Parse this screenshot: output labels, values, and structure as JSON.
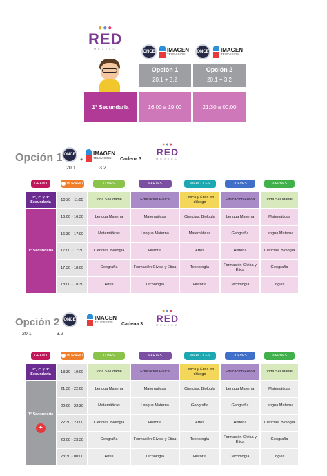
{
  "header": {
    "red_logo": {
      "word": "RED",
      "sub": "MÉXICO"
    },
    "once_logo": "ONCE",
    "imagen_logo": {
      "line1": "IMAGEN",
      "line2": "TELEVISIÓN"
    },
    "options": [
      {
        "label": "Opción 1",
        "channels": "20.1  +  3.2",
        "time": "16:00 a 19:00"
      },
      {
        "label": "Opción 2",
        "channels": "20.1  +  3.2",
        "time": "21:30 a 00:00"
      }
    ],
    "grade": "1° Secundaria"
  },
  "section1": {
    "title": "Opción 1",
    "ch_a": "20.1",
    "ch_b": "3.2",
    "plus": "+",
    "cadena": "Cadena 3"
  },
  "section2": {
    "title": "Opción 2",
    "ch_a": "20.1",
    "ch_b": "3.2",
    "plus": "+",
    "cadena": "Cadena 3"
  },
  "columns": {
    "grado": "GRADO",
    "horario": "HORARIO",
    "days": [
      "LUNES",
      "MARTES",
      "MIÉRCOLES",
      "JUEVES",
      "VIERNES"
    ]
  },
  "colors": {
    "grado": "#c2185b",
    "horario": "#f07f2d",
    "lunes": "#8bc34a",
    "martes": "#7b4fa2",
    "miercoles": "#1ca8b0",
    "jueves": "#3f6fc9",
    "viernes": "#3fb04a",
    "group_purple": "#6a2c91",
    "grade_magenta": "#b03a96",
    "grade_gray": "#9d9fa2",
    "pink_row": "#f2d7ea",
    "gray_row": "#ececec"
  },
  "table1": {
    "group_grades": "1°, 2° y 3° Secundaria",
    "group_time": "10:30 - 11:00",
    "group_cells": [
      "Vida Saludable",
      "Educación Física",
      "Cívica y Ética en diálogo",
      "Educación Física",
      "Vida Saludable"
    ],
    "grade": "1° Secundaria",
    "rows": [
      {
        "time": "16:00 - 16:30",
        "cells": [
          "Lengua Materna",
          "Matemáticas",
          "Ciencias. Biología",
          "Lengua Materna",
          "Matemáticas"
        ]
      },
      {
        "time": "16:30 - 17:00",
        "cells": [
          "Matemáticas",
          "Lengua Materna",
          "Matemáticas",
          "Geografía",
          "Lengua Materna"
        ]
      },
      {
        "time": "17:00 - 17:30",
        "cells": [
          "Ciencias. Biología",
          "Historia",
          "Artes",
          "Historia",
          "Ciencias. Biología"
        ]
      },
      {
        "time": "17:30 - 18:00",
        "cells": [
          "Geografía",
          "Formación Cívica y Ética",
          "Tecnología",
          "Formación Cívica y Ética",
          "Geografía"
        ]
      },
      {
        "time": "18:00 - 18:30",
        "cells": [
          "Artes",
          "Tecnología",
          "Historia",
          "Tecnología",
          "Inglés"
        ]
      }
    ]
  },
  "table2": {
    "group_grades": "1°, 2° y 3° Secundaria",
    "group_time": "18:30 - 19:00",
    "group_cells": [
      "Vida Saludable",
      "Educación Física",
      "Cívica y Ética en diálogo",
      "Educación Física",
      "Vida Saludable"
    ],
    "grade": "1° Secundaria",
    "rows": [
      {
        "time": "21:30 - 22:00",
        "cells": [
          "Lengua Materna",
          "Matemáticas",
          "Ciencias. Biología",
          "Lengua Materna",
          "Matemáticas"
        ]
      },
      {
        "time": "22:00 - 22:30",
        "cells": [
          "Matemáticas",
          "Lengua Materna",
          "Geografía",
          "Geografía",
          "Lengua Materna"
        ]
      },
      {
        "time": "22:30 - 23:00",
        "cells": [
          "Ciencias. Biología",
          "Historia",
          "Artes",
          "Historia",
          "Ciencias. Biología"
        ]
      },
      {
        "time": "23:00 - 23:30",
        "cells": [
          "Geografía",
          "Formación Cívica y Ética",
          "Tecnología",
          "Formación Cívica y Ética",
          "Geografía"
        ]
      },
      {
        "time": "23:30 - 00:00",
        "cells": [
          "Artes",
          "Tecnología",
          "Historia",
          "Tecnología",
          "Inglés"
        ]
      }
    ]
  }
}
